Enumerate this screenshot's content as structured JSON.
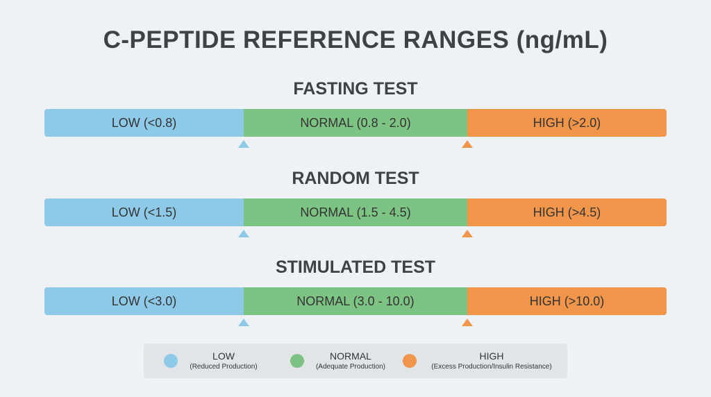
{
  "title": "C-PEPTIDE REFERENCE RANGES (ng/mL)",
  "tests": [
    {
      "name": "FASTING TEST",
      "segments": [
        "LOW (<0.8)",
        "NORMAL (0.8 - 2.0)",
        "HIGH (>2.0)"
      ]
    },
    {
      "name": "RANDOM TEST",
      "segments": [
        "LOW (<1.5)",
        "NORMAL (1.5 - 4.5)",
        "HIGH (>4.5)"
      ]
    },
    {
      "name": "STIMULATED TEST",
      "segments": [
        "LOW (<3.0)",
        "NORMAL (3.0 - 10.0)",
        "HIGH (>10.0)"
      ]
    }
  ],
  "legend": [
    {
      "label": "LOW",
      "description": "(Reduced Production)"
    },
    {
      "label": "NORMAL",
      "description": "(Adequate Production)"
    },
    {
      "label": "HIGH",
      "description": "(Excess Production/Insulin Resistance)"
    }
  ]
}
